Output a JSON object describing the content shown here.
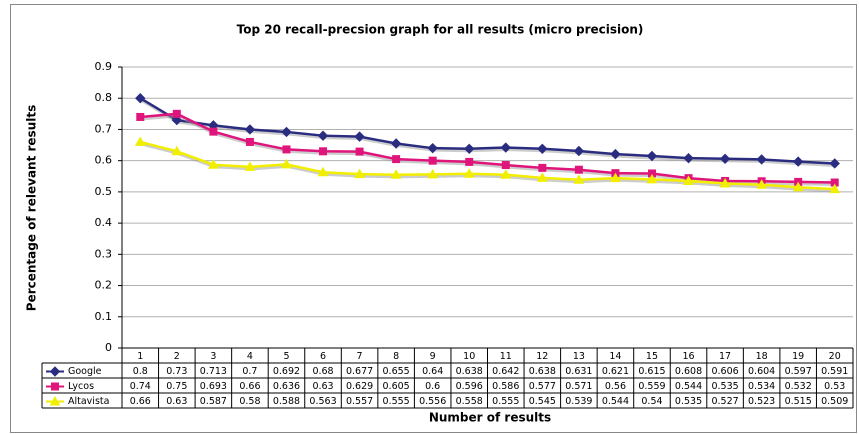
{
  "chart_data": {
    "type": "line",
    "title": "Top 20 recall-precsion graph for all results (micro precision)",
    "y_label": "Percentage of relevant results",
    "x_label": "Number of results",
    "categories": [
      "1",
      "2",
      "3",
      "4",
      "5",
      "6",
      "7",
      "8",
      "9",
      "10",
      "11",
      "12",
      "13",
      "14",
      "15",
      "16",
      "17",
      "18",
      "19",
      "20"
    ],
    "series": [
      {
        "name": "Google",
        "color": "#2a2c80",
        "marker": "diamond",
        "values": [
          0.8,
          0.73,
          0.713,
          0.7,
          0.692,
          0.68,
          0.677,
          0.655,
          0.64,
          0.638,
          0.642,
          0.638,
          0.631,
          0.621,
          0.615,
          0.608,
          0.606,
          0.604,
          0.597,
          0.591
        ]
      },
      {
        "name": "Lycos",
        "color": "#e0157c",
        "marker": "square",
        "values": [
          0.74,
          0.75,
          0.693,
          0.66,
          0.636,
          0.63,
          0.629,
          0.605,
          0.6,
          0.596,
          0.586,
          0.577,
          0.571,
          0.56,
          0.559,
          0.544,
          0.535,
          0.534,
          0.532,
          0.53
        ]
      },
      {
        "name": "Altavista",
        "color": "#f2ee00",
        "marker": "triangle",
        "values": [
          0.66,
          0.63,
          0.587,
          0.58,
          0.588,
          0.563,
          0.557,
          0.555,
          0.556,
          0.558,
          0.555,
          0.545,
          0.539,
          0.544,
          0.54,
          0.535,
          0.527,
          0.523,
          0.515,
          0.509
        ]
      }
    ],
    "ylim": [
      0,
      0.9
    ],
    "yticks": [
      0,
      0.1,
      0.2,
      0.3,
      0.4,
      0.5,
      0.6,
      0.7,
      0.8,
      0.9
    ],
    "grid": true
  }
}
